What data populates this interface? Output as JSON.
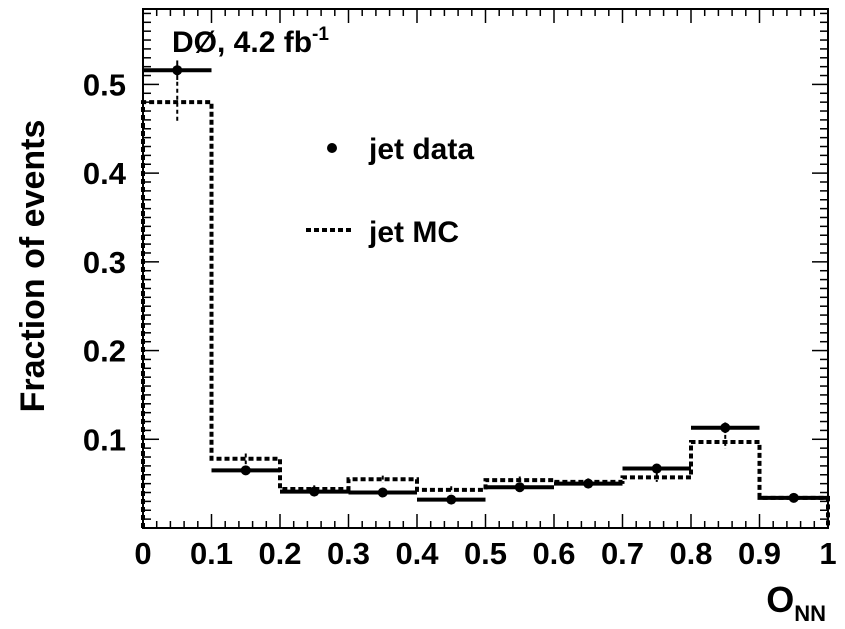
{
  "chart_data": {
    "type": "histogram",
    "title": "",
    "annotation": {
      "prefix": "DØ, 4.2 fb",
      "superscript": "-1"
    },
    "xlabel": {
      "main": "O",
      "subscript": "NN"
    },
    "ylabel": "Fraction of events",
    "xlim": [
      0,
      1
    ],
    "ylim": [
      0,
      0.585
    ],
    "x_ticks": [
      0,
      0.1,
      0.2,
      0.3,
      0.4,
      0.5,
      0.6,
      0.7,
      0.8,
      0.9,
      1
    ],
    "x_tick_labels": [
      "0",
      "0.1",
      "0.2",
      "0.3",
      "0.4",
      "0.5",
      "0.6",
      "0.7",
      "0.8",
      "0.9",
      "1"
    ],
    "y_ticks": [
      0.1,
      0.2,
      0.3,
      0.4,
      0.5
    ],
    "y_tick_labels": [
      "0.1",
      "0.2",
      "0.3",
      "0.4",
      "0.5"
    ],
    "bin_edges": [
      0,
      0.1,
      0.2,
      0.3,
      0.4,
      0.5,
      0.6,
      0.7,
      0.8,
      0.9,
      1.0
    ],
    "series": [
      {
        "name": "jet data",
        "style": "points-with-errors",
        "values": [
          0.516,
          0.065,
          0.041,
          0.04,
          0.032,
          0.046,
          0.05,
          0.067,
          0.113,
          0.034
        ],
        "errors": [
          0.011,
          0.005,
          0.003,
          0.003,
          0.003,
          0.003,
          0.003,
          0.004,
          0.006,
          0.003
        ]
      },
      {
        "name": "jet MC",
        "style": "dashed-step",
        "values": [
          0.48,
          0.078,
          0.044,
          0.055,
          0.043,
          0.054,
          0.052,
          0.057,
          0.097,
          0.034
        ],
        "errors": [
          0.023,
          0.006,
          0.004,
          0.004,
          0.004,
          0.004,
          0.004,
          0.005,
          0.008,
          0.003
        ]
      }
    ],
    "legend": {
      "placement": "upper-center"
    },
    "grid": false,
    "colors": {
      "data": "#000000",
      "mc": "#000000",
      "axes": "#000000"
    }
  }
}
